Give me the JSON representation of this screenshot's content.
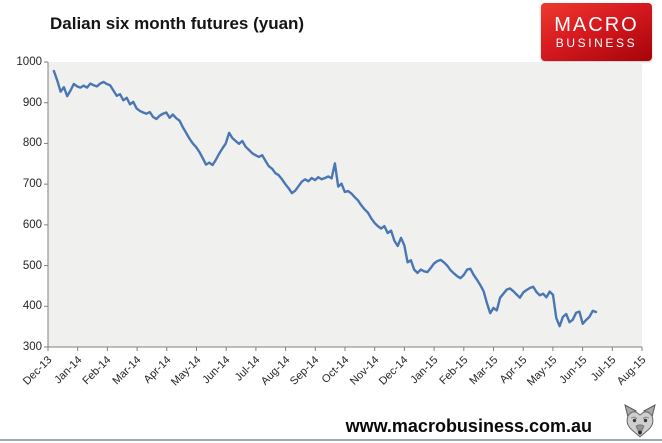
{
  "header": {
    "title": "Dalian six month futures (yuan)"
  },
  "logo": {
    "line1": "MACRO",
    "line2": "BUSINESS",
    "bg_top_color": "#ee3a2d",
    "bg_bottom_color": "#a40409",
    "text_color": "#ffffff"
  },
  "footer": {
    "url": "www.macrobusiness.com.au",
    "rule_color": "#9fa8b0",
    "icon": "wolf-icon"
  },
  "chart_data": {
    "type": "line",
    "title": "Dalian six month futures (yuan)",
    "xlabel": "",
    "ylabel": "",
    "ylim": [
      300,
      1000
    ],
    "y_ticks": [
      1000,
      900,
      800,
      700,
      600,
      500,
      400,
      300
    ],
    "x_tick_labels": [
      "Dec-13",
      "Jan-14",
      "Feb-14",
      "Mar-14",
      "Apr-14",
      "May-14",
      "Jun-14",
      "Jul-14",
      "Aug-14",
      "Sep-14",
      "Oct-14",
      "Nov-14",
      "Dec-14",
      "Jan-15",
      "Feb-15",
      "Mar-15",
      "Apr-15",
      "May-15",
      "Jun-15",
      "Jul-15",
      "Aug-15"
    ],
    "grid": false,
    "legend": "none",
    "plot_bg": "#f0f0ee",
    "axis_color": "#808080",
    "line_color": "#4a77b4",
    "line_width": 2.4,
    "series": [
      {
        "name": "Dalian six month futures (yuan)",
        "x_start_month": 0.2,
        "x_end_month": 18.45,
        "values": [
          978,
          955,
          927,
          938,
          916,
          930,
          946,
          940,
          937,
          942,
          937,
          947,
          943,
          940,
          947,
          951,
          946,
          943,
          930,
          917,
          921,
          906,
          912,
          896,
          902,
          886,
          880,
          876,
          873,
          877,
          865,
          860,
          868,
          873,
          876,
          863,
          871,
          862,
          856,
          840,
          826,
          812,
          800,
          791,
          779,
          764,
          748,
          753,
          747,
          760,
          775,
          788,
          800,
          826,
          813,
          806,
          799,
          806,
          792,
          784,
          776,
          771,
          767,
          771,
          757,
          744,
          738,
          727,
          722,
          712,
          700,
          690,
          678,
          684,
          695,
          706,
          712,
          707,
          715,
          710,
          717,
          712,
          715,
          719,
          714,
          751,
          694,
          701,
          681,
          683,
          677,
          668,
          660,
          648,
          638,
          630,
          616,
          605,
          597,
          591,
          597,
          580,
          586,
          561,
          548,
          568,
          550,
          508,
          513,
          490,
          482,
          490,
          486,
          484,
          494,
          505,
          511,
          514,
          508,
          500,
          489,
          481,
          474,
          469,
          477,
          490,
          492,
          477,
          465,
          452,
          437,
          408,
          383,
          396,
          390,
          421,
          431,
          441,
          444,
          437,
          429,
          421,
          434,
          440,
          445,
          448,
          435,
          427,
          431,
          422,
          436,
          428,
          371,
          351,
          374,
          381,
          361,
          367,
          384,
          387,
          357,
          366,
          374,
          389,
          386
        ]
      }
    ]
  }
}
